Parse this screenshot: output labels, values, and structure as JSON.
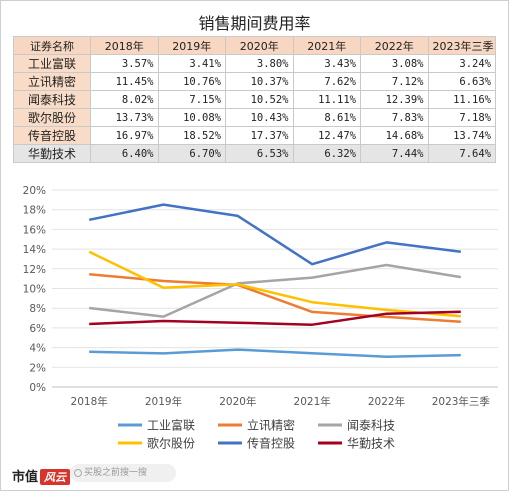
{
  "chart_data": {
    "type": "line",
    "title": "销售期间费用率",
    "categories": [
      "2018年",
      "2019年",
      "2020年",
      "2021年",
      "2022年",
      "2023年三季"
    ],
    "table_header": "证券名称",
    "yticks": [
      "0%",
      "2%",
      "4%",
      "6%",
      "8%",
      "10%",
      "12%",
      "14%",
      "16%",
      "18%",
      "20%"
    ],
    "ylim": [
      0,
      20
    ],
    "legend_position": "bottom",
    "grid": true,
    "series": [
      {
        "name": "工业富联",
        "color": "#5b9bd5",
        "values": [
          3.57,
          3.41,
          3.8,
          3.43,
          3.08,
          3.24
        ],
        "labels": [
          "3.57%",
          "3.41%",
          "3.80%",
          "3.43%",
          "3.08%",
          "3.24%"
        ]
      },
      {
        "name": "立讯精密",
        "color": "#ed7d31",
        "values": [
          11.45,
          10.76,
          10.37,
          7.62,
          7.12,
          6.63
        ],
        "labels": [
          "11.45%",
          "10.76%",
          "10.37%",
          "7.62%",
          "7.12%",
          "6.63%"
        ]
      },
      {
        "name": "闻泰科技",
        "color": "#a5a5a5",
        "values": [
          8.02,
          7.15,
          10.52,
          11.11,
          12.39,
          11.16
        ],
        "labels": [
          "8.02%",
          "7.15%",
          "10.52%",
          "11.11%",
          "12.39%",
          "11.16%"
        ]
      },
      {
        "name": "歌尔股份",
        "color": "#ffc000",
        "values": [
          13.73,
          10.08,
          10.43,
          8.61,
          7.83,
          7.18
        ],
        "labels": [
          "13.73%",
          "10.08%",
          "10.43%",
          "8.61%",
          "7.83%",
          "7.18%"
        ]
      },
      {
        "name": "传音控股",
        "color": "#4472c4",
        "values": [
          16.97,
          18.52,
          17.37,
          12.47,
          14.68,
          13.74
        ],
        "labels": [
          "16.97%",
          "18.52%",
          "17.37%",
          "12.47%",
          "14.68%",
          "13.74%"
        ]
      },
      {
        "name": "华勤技术",
        "color": "#a50021",
        "values": [
          6.4,
          6.7,
          6.53,
          6.32,
          7.44,
          7.64
        ],
        "labels": [
          "6.40%",
          "6.70%",
          "6.53%",
          "6.32%",
          "7.44%",
          "7.64%"
        ],
        "highlight": true
      }
    ]
  },
  "footer": {
    "brand": "市值",
    "brand_tag": "风云",
    "search_placeholder": "买股之前搜一搜"
  }
}
